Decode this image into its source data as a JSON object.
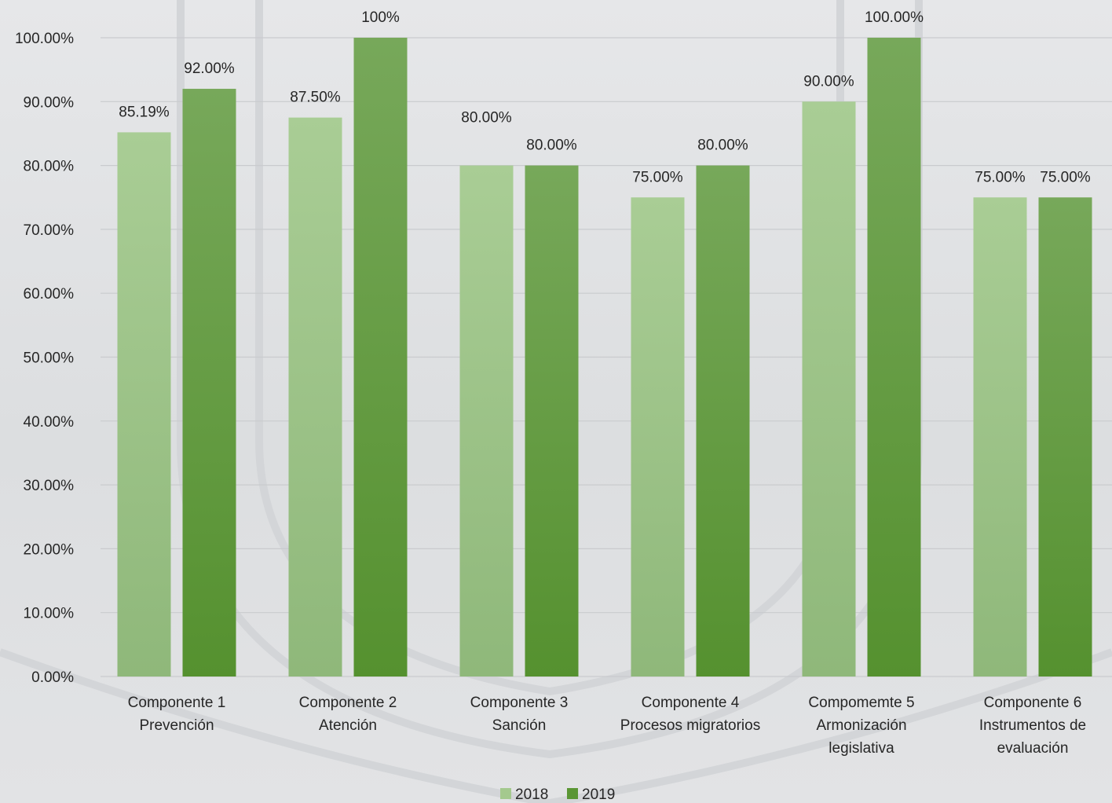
{
  "chart_data": {
    "type": "bar",
    "title": "",
    "xlabel": "",
    "ylabel": "",
    "ylim": [
      0,
      100
    ],
    "y_ticks": [
      "0.00%",
      "10.00%",
      "20.00%",
      "30.00%",
      "40.00%",
      "50.00%",
      "60.00%",
      "70.00%",
      "80.00%",
      "90.00%",
      "100.00%"
    ],
    "grid": true,
    "legend_position": "bottom",
    "categories": [
      [
        "Componente 1",
        "Prevención"
      ],
      [
        "Componente 2",
        "Atención"
      ],
      [
        "Componente 3",
        "Sanción"
      ],
      [
        "Componente 4",
        "Procesos migratorios"
      ],
      [
        "Compomemte 5",
        "Armonización",
        "legislativa"
      ],
      [
        "Componente 6",
        "Instrumentos de",
        "evaluación"
      ]
    ],
    "series": [
      {
        "name": "2018",
        "color": "#a4c98e",
        "values": [
          85.19,
          87.5,
          80,
          75,
          90,
          75
        ],
        "labels": [
          "85.19%",
          "87.50%",
          "80.00%",
          "75.00%",
          "90.00%",
          "75.00%"
        ]
      },
      {
        "name": "2019",
        "color": "#5a9634",
        "values": [
          92,
          100,
          80,
          80,
          100,
          75
        ],
        "labels": [
          "92.00%",
          "100%",
          "80.00%",
          "80.00%",
          "100.00%",
          "75.00%"
        ]
      }
    ]
  }
}
